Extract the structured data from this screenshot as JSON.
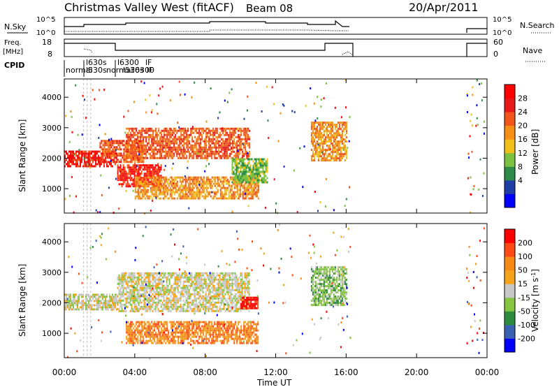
{
  "header": {
    "title": "Christmas Valley West (fitACF)",
    "beam": "Beam 08",
    "date": "20/Apr/2011"
  },
  "panels": {
    "nsky_label": "N.Sky",
    "nsky_ticks": [
      "10^5",
      "10^0"
    ],
    "nsearch_label": "N.Search",
    "freq_label_1": "Freq.",
    "freq_label_2": "[MHz]",
    "freq_ticks": [
      "18",
      "8"
    ],
    "nave_label": "Nave",
    "nave_ticks": [
      "60",
      "0"
    ],
    "cpid_label": "CPID",
    "cpid_texts": [
      "normal",
      "l630s",
      "l530s",
      "l6300",
      "lF",
      "normal",
      "l530s",
      "l6300",
      "lF"
    ]
  },
  "colors": {
    "power": [
      "#0000ff",
      "#1f3fa8",
      "#2d8c4a",
      "#7dc142",
      "#f2c018",
      "#f68f14",
      "#f2561a",
      "#e81818",
      "#ff0000"
    ],
    "velocity": [
      "#ff0000",
      "#ff4a16",
      "#f78a16",
      "#f4a31a",
      "#c8c8c8",
      "#86c541",
      "#2e8b3d",
      "#3b61b2",
      "#0000ff"
    ]
  },
  "chart_data": [
    {
      "type": "heatmap",
      "name": "power",
      "ylabel": "Slant Range [km]",
      "xlabel": "Time UT",
      "colorbar_label": "Power [dB]",
      "colorbar_ticks": [
        "28",
        "24",
        "20",
        "16",
        "12",
        "8",
        "4"
      ],
      "y_ticks": [
        "4000",
        "3000",
        "2000",
        "1000"
      ],
      "x_ticks": [
        "00:00",
        "04:00",
        "08:00",
        "12:00",
        "16:00",
        "20:00",
        "00:00"
      ],
      "xlim_hours": [
        0,
        24
      ],
      "ylim_km": [
        200,
        4600
      ],
      "features": [
        {
          "t0": 0.0,
          "t1": 3.0,
          "r0": 1750,
          "r1": 2250,
          "level": 7
        },
        {
          "t0": 2.0,
          "t1": 4.5,
          "r0": 1900,
          "r1": 2600,
          "level": 6
        },
        {
          "t0": 3.0,
          "t1": 5.5,
          "r0": 1100,
          "r1": 1800,
          "level": 7
        },
        {
          "t0": 3.5,
          "t1": 10.5,
          "r0": 2000,
          "r1": 3000,
          "level": 6
        },
        {
          "t0": 4.0,
          "t1": 11.0,
          "r0": 700,
          "r1": 1400,
          "level": 5
        },
        {
          "t0": 9.5,
          "t1": 11.5,
          "r0": 1200,
          "r1": 2000,
          "level": 3
        },
        {
          "t0": 14.0,
          "t1": 16.0,
          "r0": 1900,
          "r1": 3200,
          "level": 5
        }
      ]
    },
    {
      "type": "heatmap",
      "name": "velocity",
      "ylabel": "Slant Range [km]",
      "xlabel": "Time UT",
      "colorbar_label": "Velocity [m s^-1]",
      "colorbar_ticks": [
        "200",
        "100",
        "50",
        "15",
        "-15",
        "-50",
        "-100",
        "-200"
      ],
      "y_ticks": [
        "4000",
        "3000",
        "2000",
        "1000"
      ],
      "x_ticks": [
        "00:00",
        "04:00",
        "08:00",
        "12:00",
        "16:00",
        "20:00",
        "00:00"
      ],
      "xlim_hours": [
        0,
        24
      ],
      "ylim_km": [
        200,
        4600
      ],
      "features": [
        {
          "t0": 0.0,
          "t1": 3.0,
          "r0": 1750,
          "r1": 2300,
          "level": 4
        },
        {
          "t0": 3.0,
          "t1": 10.5,
          "r0": 1700,
          "r1": 3000,
          "level": 4
        },
        {
          "t0": 3.5,
          "t1": 11.0,
          "r0": 700,
          "r1": 1400,
          "level": 2
        },
        {
          "t0": 10.0,
          "t1": 11.0,
          "r0": 1800,
          "r1": 2200,
          "level": 0
        },
        {
          "t0": 14.0,
          "t1": 16.0,
          "r0": 1900,
          "r1": 3200,
          "level": 5
        }
      ]
    }
  ]
}
